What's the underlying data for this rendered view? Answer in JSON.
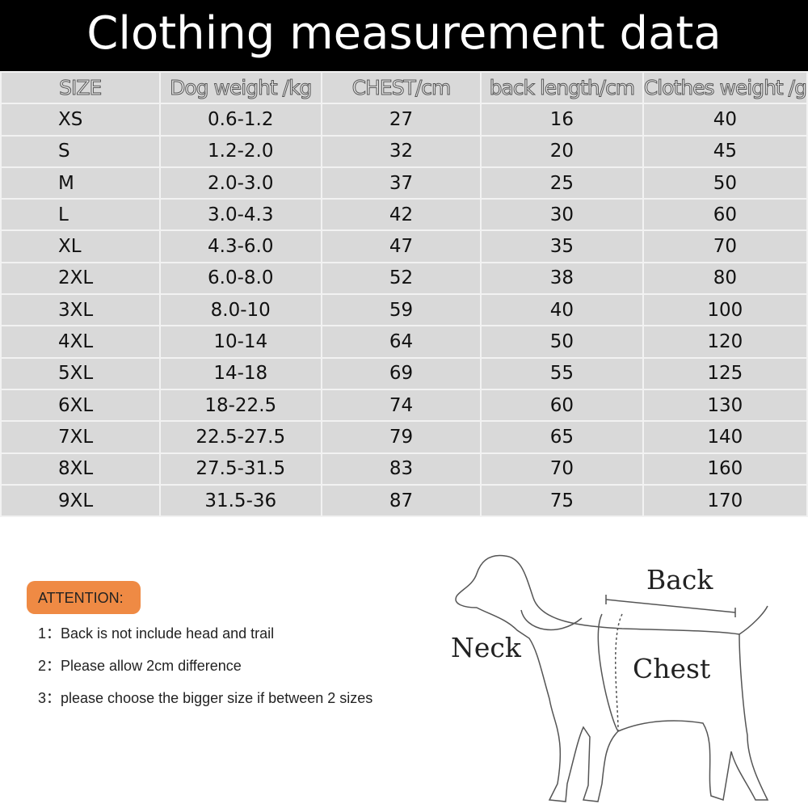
{
  "title": "Clothing measurement data",
  "table": {
    "headers": [
      "SIZE",
      "Dog weight /kg",
      "CHEST/cm",
      "back length/cm",
      "Clothes weight /g"
    ],
    "rows": [
      [
        "XS",
        "0.6-1.2",
        "27",
        "16",
        "40"
      ],
      [
        "S",
        "1.2-2.0",
        "32",
        "20",
        "45"
      ],
      [
        "M",
        "2.0-3.0",
        "37",
        "25",
        "50"
      ],
      [
        "L",
        "3.0-4.3",
        "42",
        "30",
        "60"
      ],
      [
        "XL",
        "4.3-6.0",
        "47",
        "35",
        "70"
      ],
      [
        "2XL",
        "6.0-8.0",
        "52",
        "38",
        "80"
      ],
      [
        "3XL",
        "8.0-10",
        "59",
        "40",
        "100"
      ],
      [
        "4XL",
        "10-14",
        "64",
        "50",
        "120"
      ],
      [
        "5XL",
        "14-18",
        "69",
        "55",
        "125"
      ],
      [
        "6XL",
        "18-22.5",
        "74",
        "60",
        "130"
      ],
      [
        "7XL",
        "22.5-27.5",
        "79",
        "65",
        "140"
      ],
      [
        "8XL",
        "27.5-31.5",
        "83",
        "70",
        "160"
      ],
      [
        "9XL",
        "31.5-36",
        "87",
        "75",
        "170"
      ]
    ]
  },
  "attention": {
    "label": "ATTENTION:",
    "notes": [
      "1：Back is not include head and trail",
      "2：Please allow 2cm difference",
      "3：please choose the bigger size if between 2 sizes"
    ],
    "color": "#ef8a44"
  },
  "diagram": {
    "back": "Back",
    "neck": "Neck",
    "chest": "Chest"
  }
}
